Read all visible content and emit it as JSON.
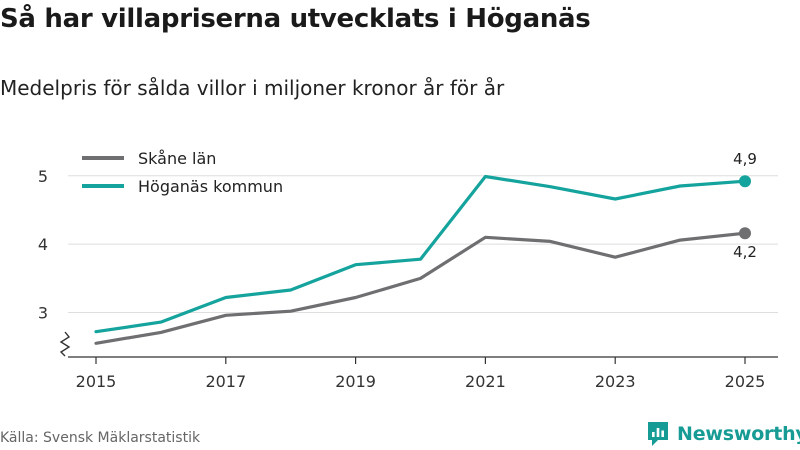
{
  "title": "Så har villapriserna utvecklats i Höganäs",
  "subtitle": "Medelpris för sålda villor i miljoner kronor år för år",
  "source": "Källa: Svensk Mäklarstatistik",
  "brand": "Newsworthy",
  "chart_data": {
    "type": "line",
    "x": [
      2015,
      2016,
      2017,
      2018,
      2019,
      2020,
      2021,
      2022,
      2023,
      2024,
      2025
    ],
    "x_tick_labels": [
      "2015",
      "2017",
      "2019",
      "2021",
      "2023",
      "2025"
    ],
    "y_tick_labels": [
      "3",
      "4",
      "5"
    ],
    "ylim": [
      2.35,
      5.45
    ],
    "y_axis_break": true,
    "grid": true,
    "legend_position": "top-left",
    "series": [
      {
        "name": "Skåne län",
        "color": "#6f6f72",
        "values": [
          2.55,
          2.71,
          2.96,
          3.02,
          3.22,
          3.5,
          4.1,
          4.04,
          3.81,
          4.06,
          4.16
        ],
        "end_label": "4,2"
      },
      {
        "name": "Höganäs kommun",
        "color": "#15a39d",
        "values": [
          2.72,
          2.86,
          3.22,
          3.33,
          3.7,
          3.78,
          4.99,
          4.84,
          4.66,
          4.85,
          4.92
        ],
        "end_label": "4,9"
      }
    ]
  }
}
